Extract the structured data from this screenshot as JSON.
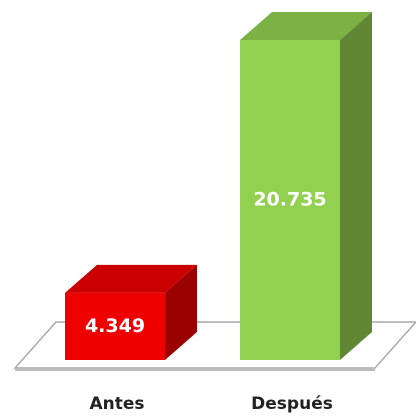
{
  "chart_data": {
    "type": "bar3d",
    "categories": [
      "Antes",
      "Después"
    ],
    "values": [
      4349,
      20735
    ],
    "value_labels": [
      "4.349",
      "20.735"
    ],
    "colors": [
      "#ee0000",
      "#92d050"
    ]
  }
}
